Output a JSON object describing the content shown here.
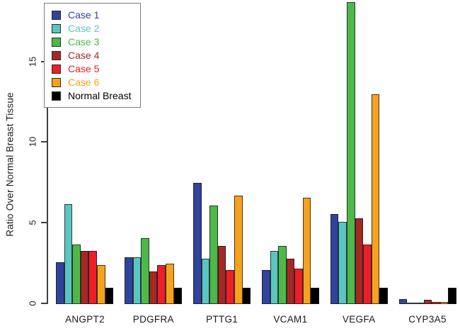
{
  "figure": {
    "background": "#ffffff",
    "axis_color": "#404040"
  },
  "chart_data": {
    "type": "bar",
    "title": "",
    "xlabel": "",
    "ylabel": "Ratio Over Normal Breast Tissue",
    "ylim": [
      0,
      18.8
    ],
    "yticks": [
      0,
      5,
      10,
      15
    ],
    "grid": false,
    "legend_position": "top-left",
    "categories": [
      "ANGPT2",
      "PDGFRA",
      "PTTG1",
      "VCAM1",
      "VEGFA",
      "CYP3A5"
    ],
    "series": [
      {
        "name": "Case 1",
        "color": "#31449c",
        "values": [
          2.6,
          2.9,
          7.5,
          2.1,
          5.6,
          0.3
        ]
      },
      {
        "name": "Case 2",
        "color": "#5bc6bf",
        "values": [
          6.2,
          2.9,
          2.8,
          3.3,
          5.1,
          0.1
        ]
      },
      {
        "name": "Case 3",
        "color": "#4eb948",
        "values": [
          3.7,
          4.1,
          6.1,
          3.6,
          18.7,
          0.1
        ]
      },
      {
        "name": "Case 4",
        "color": "#a32a24",
        "values": [
          3.3,
          2.0,
          3.6,
          2.8,
          5.3,
          0.25
        ]
      },
      {
        "name": "Case 5",
        "color": "#ec1f26",
        "values": [
          3.3,
          2.4,
          2.1,
          2.2,
          3.7,
          0.15
        ]
      },
      {
        "name": "Case 6",
        "color": "#f5a21c",
        "values": [
          2.4,
          2.5,
          6.7,
          6.6,
          13.0,
          0.15
        ]
      },
      {
        "name": "Normal Breast",
        "color": "#000000",
        "values": [
          1.0,
          1.0,
          1.0,
          1.0,
          1.0,
          1.0
        ]
      }
    ]
  }
}
